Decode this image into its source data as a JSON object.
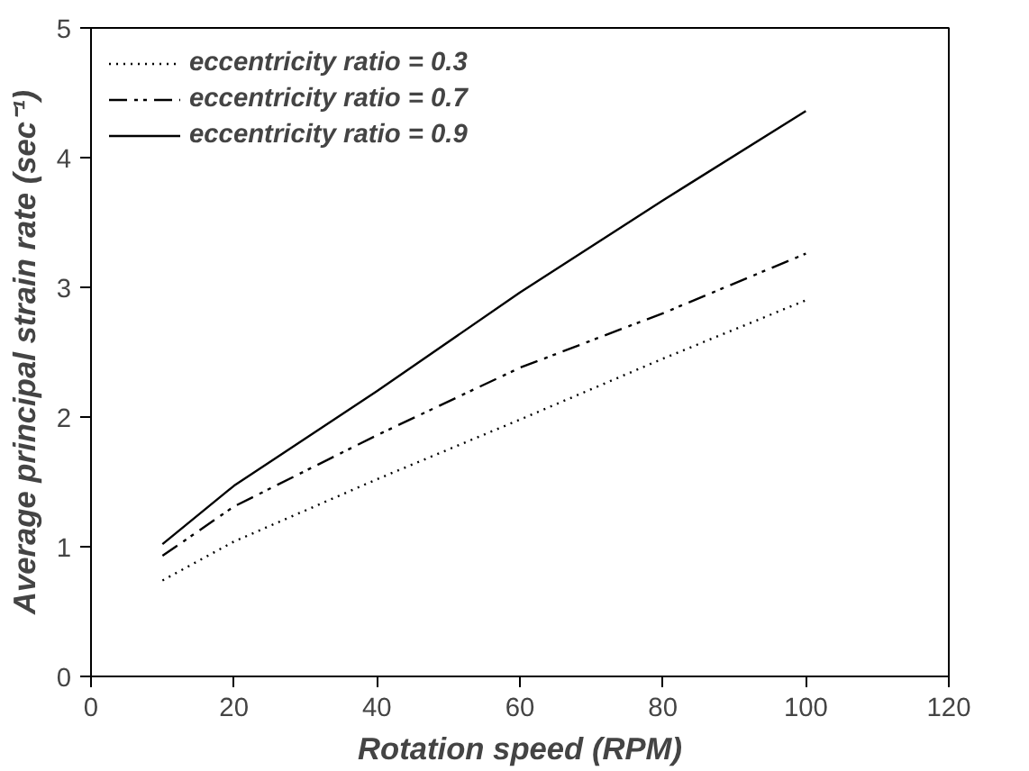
{
  "chart_data": {
    "type": "line",
    "xlabel": "Rotation speed (RPM)",
    "ylabel": "Average principal strain rate (sec⁻¹)",
    "x": [
      10,
      20,
      40,
      60,
      80,
      100
    ],
    "series": [
      {
        "name": "eccentricity ratio = 0.3",
        "color": "#000000",
        "line_style": "dotted",
        "values": [
          0.74,
          1.04,
          1.52,
          1.98,
          2.45,
          2.9
        ]
      },
      {
        "name": "eccentricity ratio = 0.7",
        "color": "#000000",
        "line_style": "dashdotdot",
        "values": [
          0.93,
          1.31,
          1.86,
          2.38,
          2.8,
          3.26
        ]
      },
      {
        "name": "eccentricity ratio = 0.9",
        "color": "#000000",
        "line_style": "solid",
        "values": [
          1.02,
          1.47,
          2.2,
          2.96,
          3.67,
          4.36
        ]
      }
    ],
    "xlim": [
      0,
      120
    ],
    "ylim": [
      0,
      5
    ],
    "xticks": [
      0,
      20,
      40,
      60,
      80,
      100,
      120
    ],
    "yticks": [
      0,
      1,
      2,
      3,
      4,
      5
    ],
    "grid": false,
    "legend": "top left",
    "marker": "none"
  }
}
